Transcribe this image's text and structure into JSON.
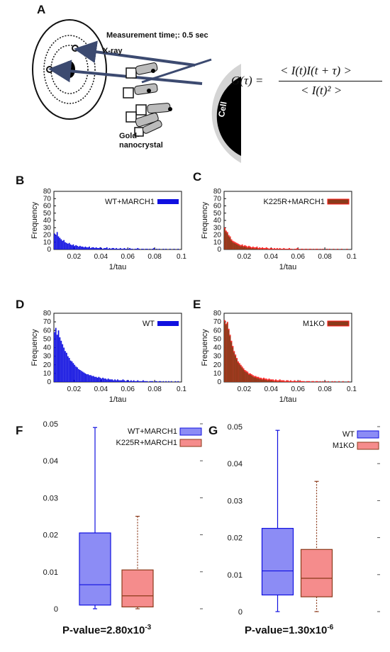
{
  "panels": {
    "A": {
      "letter": "A",
      "measurement_label": "Measurement time;: 0.5 sec",
      "xray_label": "X-ray",
      "cell_label": "Cell",
      "gold_label_line1": "Gold-",
      "gold_label_line2": "nanocrystal",
      "formula_lhs": "G(τ) =",
      "formula_num": "< I(t)I(t + τ) >",
      "formula_den": "< I(t)² >"
    },
    "B": {
      "letter": "B"
    },
    "C": {
      "letter": "C"
    },
    "D": {
      "letter": "D"
    },
    "E": {
      "letter": "E"
    },
    "F": {
      "letter": "F",
      "pvalue_text": "P-value=2.80x10",
      "pvalue_exp": "-3"
    },
    "G": {
      "letter": "G",
      "pvalue_text": "P-value=1.30x10",
      "pvalue_exp": "-6"
    }
  },
  "colors": {
    "blue": "#1010e0",
    "red": "#ff1a1a",
    "brown": "#8b3a1a",
    "box_blue_fill": "#8c8cf5",
    "box_red_fill": "#f58c8c"
  },
  "chart_data": [
    {
      "id": "B",
      "type": "bar",
      "legend": "WT+MARCH1",
      "legend_placement": "top-right",
      "xlabel": "1/tau",
      "ylabel": "Frequency",
      "xlim": [
        0.005,
        0.1
      ],
      "ylim": [
        0,
        80
      ],
      "xticks": [
        "0.02",
        "0.04",
        "0.06",
        "0.08",
        "0.1"
      ],
      "yticks": [
        "0",
        "10",
        "20",
        "30",
        "40",
        "50",
        "60",
        "70",
        "80"
      ],
      "bin_start": 0.005,
      "bin_width": 0.001,
      "values": [
        22,
        20,
        24,
        18,
        16,
        14,
        12,
        13,
        10,
        9,
        8,
        9,
        7,
        6,
        7,
        5,
        6,
        5,
        4,
        5,
        4,
        4,
        3,
        4,
        3,
        3,
        4,
        2,
        3,
        3,
        2,
        3,
        2,
        2,
        3,
        2,
        1,
        2,
        2,
        3,
        1,
        2,
        1,
        2,
        2,
        1,
        2,
        1,
        1,
        2,
        1,
        1,
        2,
        1,
        1,
        1,
        2,
        1,
        1,
        0,
        1,
        1,
        2,
        1,
        0,
        1,
        1,
        0,
        1,
        1,
        0,
        1,
        0,
        1,
        2,
        0,
        1,
        0,
        1,
        0,
        0,
        1,
        0,
        1,
        0,
        0,
        1,
        0,
        0,
        1,
        0,
        0,
        1,
        0,
        0
      ]
    },
    {
      "id": "C",
      "type": "bar",
      "legend": "K225R+MARCH1",
      "legend_placement": "top-right",
      "xlabel": "1/tau",
      "ylabel": "Frequency",
      "xlim": [
        0.005,
        0.1
      ],
      "ylim": [
        0,
        80
      ],
      "xticks": [
        "0.02",
        "0.04",
        "0.06",
        "0.08",
        "0.1"
      ],
      "yticks": [
        "0",
        "10",
        "20",
        "30",
        "40",
        "50",
        "60",
        "70",
        "80"
      ],
      "bin_start": 0.005,
      "bin_width": 0.001,
      "values": [
        30,
        26,
        24,
        20,
        18,
        14,
        12,
        11,
        10,
        9,
        8,
        7,
        6,
        7,
        5,
        6,
        5,
        4,
        5,
        4,
        3,
        4,
        3,
        3,
        4,
        2,
        3,
        2,
        3,
        2,
        2,
        3,
        2,
        1,
        2,
        2,
        1,
        2,
        1,
        2,
        1,
        2,
        1,
        1,
        2,
        1,
        1,
        1,
        2,
        1,
        1,
        0,
        1,
        1,
        2,
        1,
        0,
        1,
        1,
        0,
        1,
        1,
        0,
        1,
        1,
        0,
        1,
        0,
        1,
        1,
        0,
        1,
        0,
        1,
        0,
        0,
        1,
        0,
        1,
        0,
        0,
        1,
        0,
        0,
        1,
        0,
        0,
        1,
        0,
        0,
        0,
        1,
        0,
        0,
        0
      ]
    },
    {
      "id": "D",
      "type": "bar",
      "legend": "WT",
      "legend_placement": "top-right",
      "xlabel": "1/tau",
      "ylabel": "Frequency",
      "xlim": [
        0.005,
        0.1
      ],
      "ylim": [
        0,
        80
      ],
      "xticks": [
        "0.02",
        "0.04",
        "0.06",
        "0.08",
        "0.1"
      ],
      "yticks": [
        "0",
        "10",
        "20",
        "30",
        "40",
        "50",
        "60",
        "70",
        "80"
      ],
      "bin_start": 0.005,
      "bin_width": 0.001,
      "values": [
        58,
        63,
        55,
        60,
        52,
        48,
        44,
        40,
        36,
        34,
        30,
        28,
        25,
        24,
        22,
        20,
        18,
        17,
        15,
        14,
        13,
        12,
        11,
        10,
        9,
        9,
        8,
        8,
        7,
        7,
        6,
        6,
        5,
        6,
        5,
        4,
        5,
        4,
        4,
        3,
        4,
        3,
        3,
        3,
        2,
        3,
        2,
        3,
        2,
        2,
        2,
        3,
        2,
        1,
        2,
        2,
        1,
        2,
        1,
        2,
        1,
        1,
        2,
        1,
        1,
        1,
        2,
        1,
        1,
        1,
        0,
        1,
        1,
        1,
        0,
        1,
        1,
        0,
        1,
        1,
        0,
        1,
        0,
        1,
        0,
        1,
        0,
        1,
        0,
        0,
        1,
        0,
        1,
        0,
        0
      ]
    },
    {
      "id": "E",
      "type": "bar",
      "legend": "M1KO",
      "legend_placement": "top-right",
      "xlabel": "1/tau",
      "ylabel": "Frequency",
      "xlim": [
        0.005,
        0.1
      ],
      "ylim": [
        0,
        80
      ],
      "xticks": [
        "0.02",
        "0.04",
        "0.06",
        "0.08",
        "0.1"
      ],
      "yticks": [
        "0",
        "10",
        "20",
        "30",
        "40",
        "50",
        "60",
        "70",
        "80"
      ],
      "bin_start": 0.005,
      "bin_width": 0.001,
      "values": [
        72,
        68,
        70,
        62,
        55,
        48,
        42,
        36,
        32,
        28,
        24,
        22,
        20,
        18,
        16,
        14,
        13,
        12,
        10,
        10,
        9,
        8,
        7,
        7,
        6,
        6,
        5,
        5,
        4,
        5,
        4,
        4,
        3,
        4,
        3,
        3,
        3,
        2,
        3,
        2,
        2,
        3,
        2,
        2,
        2,
        1,
        2,
        2,
        1,
        2,
        1,
        1,
        2,
        1,
        1,
        1,
        2,
        1,
        1,
        1,
        0,
        1,
        1,
        1,
        0,
        1,
        1,
        0,
        1,
        1,
        0,
        1,
        0,
        1,
        0,
        1,
        0,
        1,
        0,
        0,
        1,
        0,
        1,
        0,
        0,
        1,
        0,
        0,
        1,
        0,
        0,
        0,
        1,
        0,
        0
      ]
    },
    {
      "id": "F",
      "type": "box",
      "ylim": [
        0,
        0.05
      ],
      "yticks": [
        "0",
        "0.01",
        "0.02",
        "0.03",
        "0.04",
        "0.05"
      ],
      "boxes": [
        {
          "name": "WT+MARCH1",
          "min": 0.0,
          "q1": 0.001,
          "median": 0.0065,
          "q3": 0.0205,
          "max": 0.049
        },
        {
          "name": "K225R+MARCH1",
          "min": 0.0,
          "q1": 0.0005,
          "median": 0.0035,
          "q3": 0.0105,
          "max": 0.025
        }
      ]
    },
    {
      "id": "G",
      "type": "box",
      "ylim": [
        0,
        0.05
      ],
      "yticks": [
        "0",
        "0.01",
        "0.02",
        "0.03",
        "0.04",
        "0.05"
      ],
      "boxes": [
        {
          "name": "WT",
          "min": 0.0,
          "q1": 0.0045,
          "median": 0.011,
          "q3": 0.0225,
          "max": 0.049
        },
        {
          "name": "M1KO",
          "min": 0.0,
          "q1": 0.004,
          "median": 0.009,
          "q3": 0.0168,
          "max": 0.0352
        }
      ]
    }
  ]
}
